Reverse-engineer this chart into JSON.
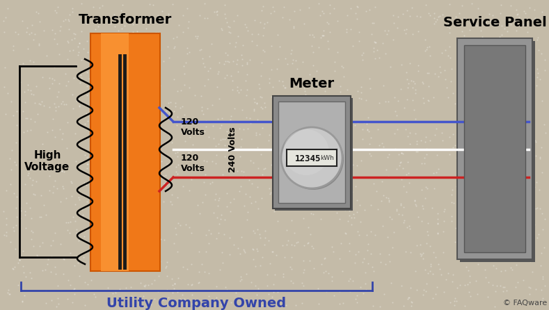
{
  "bg_color": "#c4bba8",
  "title_transformer": "Transformer",
  "title_meter": "Meter",
  "title_service_panel": "Service Panel",
  "label_high_voltage": "High\nVoltage",
  "label_120v_top": "120\nVolts",
  "label_120v_bot": "120\nVolts",
  "label_240v": "240 Volts",
  "label_utility": "Utility Company Owned",
  "label_copyright": "© FAQware",
  "transformer_color": "#f07818",
  "transformer_color_grad": "#e06010",
  "service_panel_color": "#949494",
  "service_panel_color_dark": "#787878",
  "meter_box_color": "#8a8a8a",
  "meter_disk_color": "#c8c8c8",
  "line_blue": "#4455cc",
  "line_white": "#ffffff",
  "line_red": "#cc2222",
  "text_color_dark": "#000000",
  "text_color_blue": "#3344aa",
  "figsize": [
    7.89,
    4.46
  ],
  "dpi": 100
}
